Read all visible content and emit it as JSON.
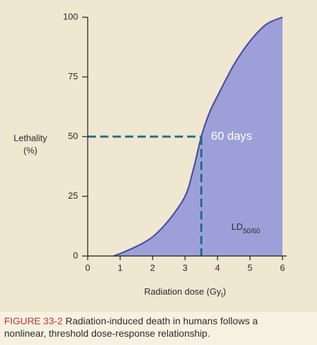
{
  "chart_data": {
    "type": "area",
    "ylabel": [
      "Lethality",
      "(%)"
    ],
    "xlabel": [
      "Radiation dose (Gy",
      "t",
      ")"
    ],
    "x": [
      0.8,
      1,
      1.5,
      2,
      2.5,
      3,
      3.25,
      3.5,
      3.75,
      4,
      4.5,
      5,
      5.5,
      6
    ],
    "values": [
      0,
      1,
      4,
      8,
      15,
      25,
      36,
      50,
      60,
      67,
      80,
      90,
      97,
      100
    ],
    "color": "#4b4ea3",
    "fill": "#9da0d8",
    "xlim": [
      0,
      6
    ],
    "ylim": [
      0,
      100
    ],
    "xticks": [
      0,
      1,
      2,
      3,
      4,
      5,
      6
    ],
    "yticks": [
      0,
      25,
      50,
      75,
      100
    ],
    "marker": {
      "x": 3.5,
      "y": 50,
      "color": "#1d6f8e"
    },
    "annotations": {
      "days": "60 days",
      "ld": "LD",
      "ld_sub": "50/60"
    }
  },
  "caption": {
    "figure": "FIGURE 33-2",
    "lines": [
      "Radiation-induced death in humans follows a",
      "nonlinear, threshold dose-response relationship."
    ]
  }
}
